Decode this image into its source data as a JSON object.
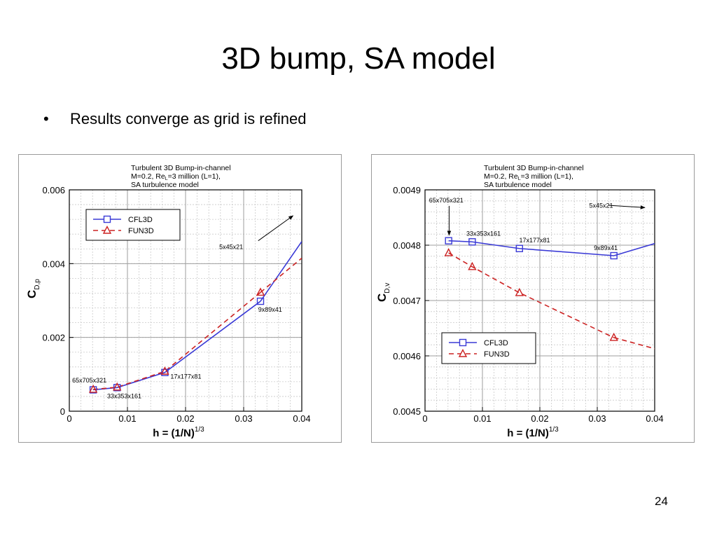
{
  "slide": {
    "title": "3D bump, SA model",
    "bullet": "Results converge as grid is refined",
    "page_number": "24"
  },
  "chart_data": [
    {
      "type": "line",
      "header": [
        "Turbulent 3D Bump-in-channel",
        "M=0.2, Re",
        "L",
        "=3 million (L=1),",
        "SA turbulence model"
      ],
      "xlabel": "h = (1/N)",
      "xlabel_sup": "1/3",
      "ylabel": "C",
      "ylabel_sub": "D,p",
      "xlim": [
        0,
        0.04
      ],
      "ylim": [
        0,
        0.006
      ],
      "xticks": [
        0,
        0.01,
        0.02,
        0.03,
        0.04
      ],
      "xtick_labels": [
        "0",
        "0.01",
        "0.02",
        "0.03",
        "0.04"
      ],
      "yticks": [
        0,
        0.002,
        0.004,
        0.006
      ],
      "ytick_labels": [
        "0",
        "0.002",
        "0.004",
        "0.006"
      ],
      "minor_x": 0.002,
      "minor_y": 0.0004,
      "grid": true,
      "legend": "top-left",
      "series": [
        {
          "name": "CFL3D",
          "color": "#3a3ad6",
          "marker": "square",
          "dash": false,
          "x": [
            0.00411,
            0.00822,
            0.01644,
            0.03289
          ],
          "y": [
            0.00058,
            0.00064,
            0.00105,
            0.00298
          ],
          "extrapolation": {
            "x": [
              0.03289,
              0.04
            ],
            "y": [
              0.00298,
              0.0046
            ]
          }
        },
        {
          "name": "FUN3D",
          "color": "#cc2222",
          "marker": "triangle",
          "dash": true,
          "x": [
            0.00411,
            0.00822,
            0.01644,
            0.03289
          ],
          "y": [
            0.00059,
            0.00065,
            0.00108,
            0.00322
          ],
          "extrapolation": {
            "x": [
              0.03289,
              0.04
            ],
            "y": [
              0.00322,
              0.00415
            ]
          }
        }
      ],
      "annotations": [
        {
          "text": "65x705x321",
          "x": 0.0005,
          "y": 0.00078
        },
        {
          "text": "33x353x161",
          "x": 0.0065,
          "y": 0.00035
        },
        {
          "text": "17x177x81",
          "x": 0.0174,
          "y": 0.00088
        },
        {
          "text": "9x89x41",
          "x": 0.0325,
          "y": 0.0027
        },
        {
          "text": "5x45x21",
          "x": 0.0258,
          "y": 0.0044
        }
      ],
      "arrows": [
        {
          "from": [
            0.0325,
            0.00462
          ],
          "to": [
            0.0385,
            0.0053
          ]
        }
      ]
    },
    {
      "type": "line",
      "header": [
        "Turbulent 3D Bump-in-channel",
        "M=0.2, Re",
        "L",
        "=3 million (L=1),",
        "SA turbulence model"
      ],
      "xlabel": "h = (1/N)",
      "xlabel_sup": "1/3",
      "ylabel": "C",
      "ylabel_sub": "D,v",
      "xlim": [
        0,
        0.04
      ],
      "ylim": [
        0.0045,
        0.0049
      ],
      "xticks": [
        0,
        0.01,
        0.02,
        0.03,
        0.04
      ],
      "xtick_labels": [
        "0",
        "0.01",
        "0.02",
        "0.03",
        "0.04"
      ],
      "yticks": [
        0.0045,
        0.0046,
        0.0047,
        0.0048,
        0.0049
      ],
      "ytick_labels": [
        "0.0045",
        "0.0046",
        "0.0047",
        "0.0048",
        "0.0049"
      ],
      "minor_x": 0.002,
      "minor_y": 2e-05,
      "grid": true,
      "legend": "bottom-left",
      "series": [
        {
          "name": "CFL3D",
          "color": "#3a3ad6",
          "marker": "square",
          "dash": false,
          "x": [
            0.00411,
            0.00822,
            0.01644,
            0.03289
          ],
          "y": [
            0.004808,
            0.004806,
            0.004794,
            0.004781
          ],
          "extrapolation": {
            "x": [
              0.03289,
              0.04
            ],
            "y": [
              0.004781,
              0.004803
            ]
          }
        },
        {
          "name": "FUN3D",
          "color": "#cc2222",
          "marker": "triangle",
          "dash": true,
          "x": [
            0.00411,
            0.00822,
            0.01644,
            0.03289
          ],
          "y": [
            0.004786,
            0.004761,
            0.004714,
            0.004633
          ],
          "extrapolation": {
            "x": [
              0.03289,
              0.04
            ],
            "y": [
              0.004633,
              0.004613
            ]
          }
        }
      ],
      "annotations": [
        {
          "text": "65x705x321",
          "x": 0.0007,
          "y": 0.004877
        },
        {
          "text": "33x353x161",
          "x": 0.0072,
          "y": 0.004817
        },
        {
          "text": "17x177x81",
          "x": 0.0164,
          "y": 0.004805
        },
        {
          "text": "9x89x41",
          "x": 0.0294,
          "y": 0.004791
        },
        {
          "text": "5x45x21",
          "x": 0.0286,
          "y": 0.004868
        }
      ],
      "arrows": [
        {
          "from": [
            0.0042,
            0.004871
          ],
          "to": [
            0.0042,
            0.004818
          ]
        },
        {
          "from": [
            0.032,
            0.004872
          ],
          "to": [
            0.0383,
            0.004868
          ]
        }
      ]
    }
  ]
}
